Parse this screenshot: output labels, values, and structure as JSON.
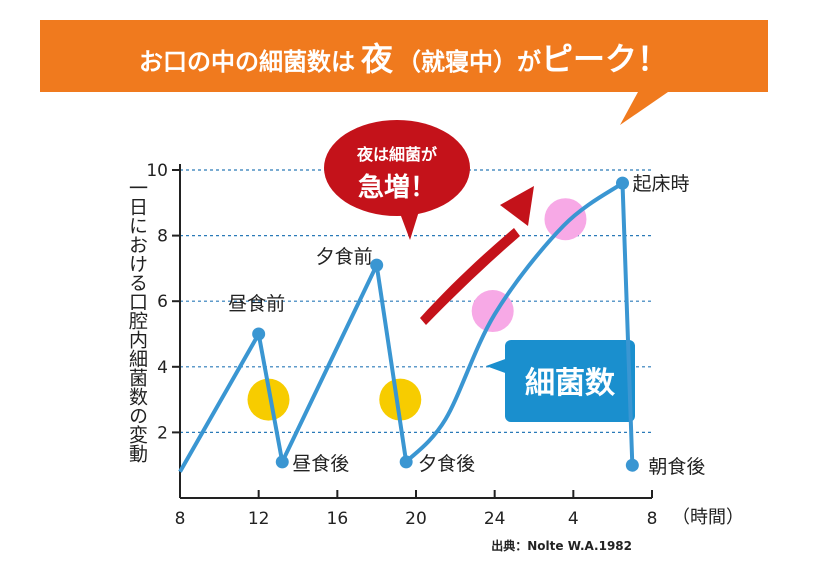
{
  "banner": {
    "text_before": "お口の中の細菌数は",
    "emphasis": "夜",
    "text_after": "（就寝中）が",
    "peak": "ピーク！",
    "color": "#f07a1e"
  },
  "callout": {
    "line1": "夜は細菌が",
    "line2": "急増！",
    "color": "#c4121a"
  },
  "series_badge": {
    "label": "細菌数",
    "color": "#1a8fce"
  },
  "source": "出典：Nolte W.A.1982",
  "chart_data": {
    "type": "line",
    "ylabel": "一日における口腔内細菌数の変動",
    "xlabel": "（時間）",
    "ylim": [
      0,
      10
    ],
    "yticks": [
      "2",
      "4",
      "6",
      "8",
      "10"
    ],
    "xticks": [
      "8",
      "12",
      "16",
      "20",
      "24",
      "4",
      "8"
    ],
    "x_axis_hours": [
      8,
      12,
      16,
      20,
      24,
      28,
      32
    ],
    "grid": true,
    "line_color": "#3a96d2",
    "series": [
      {
        "name": "細菌数",
        "x": [
          8,
          12,
          13.2,
          18,
          19.5,
          21.5,
          24,
          27.5,
          30.5,
          31
        ],
        "y": [
          0.8,
          5.0,
          1.1,
          7.1,
          1.1,
          2.4,
          5.6,
          8.3,
          9.6,
          1.0
        ]
      }
    ],
    "annotations": [
      {
        "text": "昼食前",
        "x": 12,
        "y": 5.0
      },
      {
        "text": "昼食後",
        "x": 13.2,
        "y": 1.1
      },
      {
        "text": "夕食前",
        "x": 18,
        "y": 7.1
      },
      {
        "text": "夕食後",
        "x": 19.5,
        "y": 1.1
      },
      {
        "text": "起床時",
        "x": 30.5,
        "y": 9.6
      },
      {
        "text": "朝食後",
        "x": 31,
        "y": 1.0
      }
    ],
    "yellow_markers": [
      {
        "x": 12.5,
        "y": 3.0
      },
      {
        "x": 19.2,
        "y": 3.0
      }
    ],
    "pink_markers": [
      {
        "x": 23.9,
        "y": 5.7
      },
      {
        "x": 27.6,
        "y": 8.5
      }
    ],
    "marker_colors": {
      "yellow": "#f7cc00",
      "pink": "#f7a9e6"
    }
  }
}
